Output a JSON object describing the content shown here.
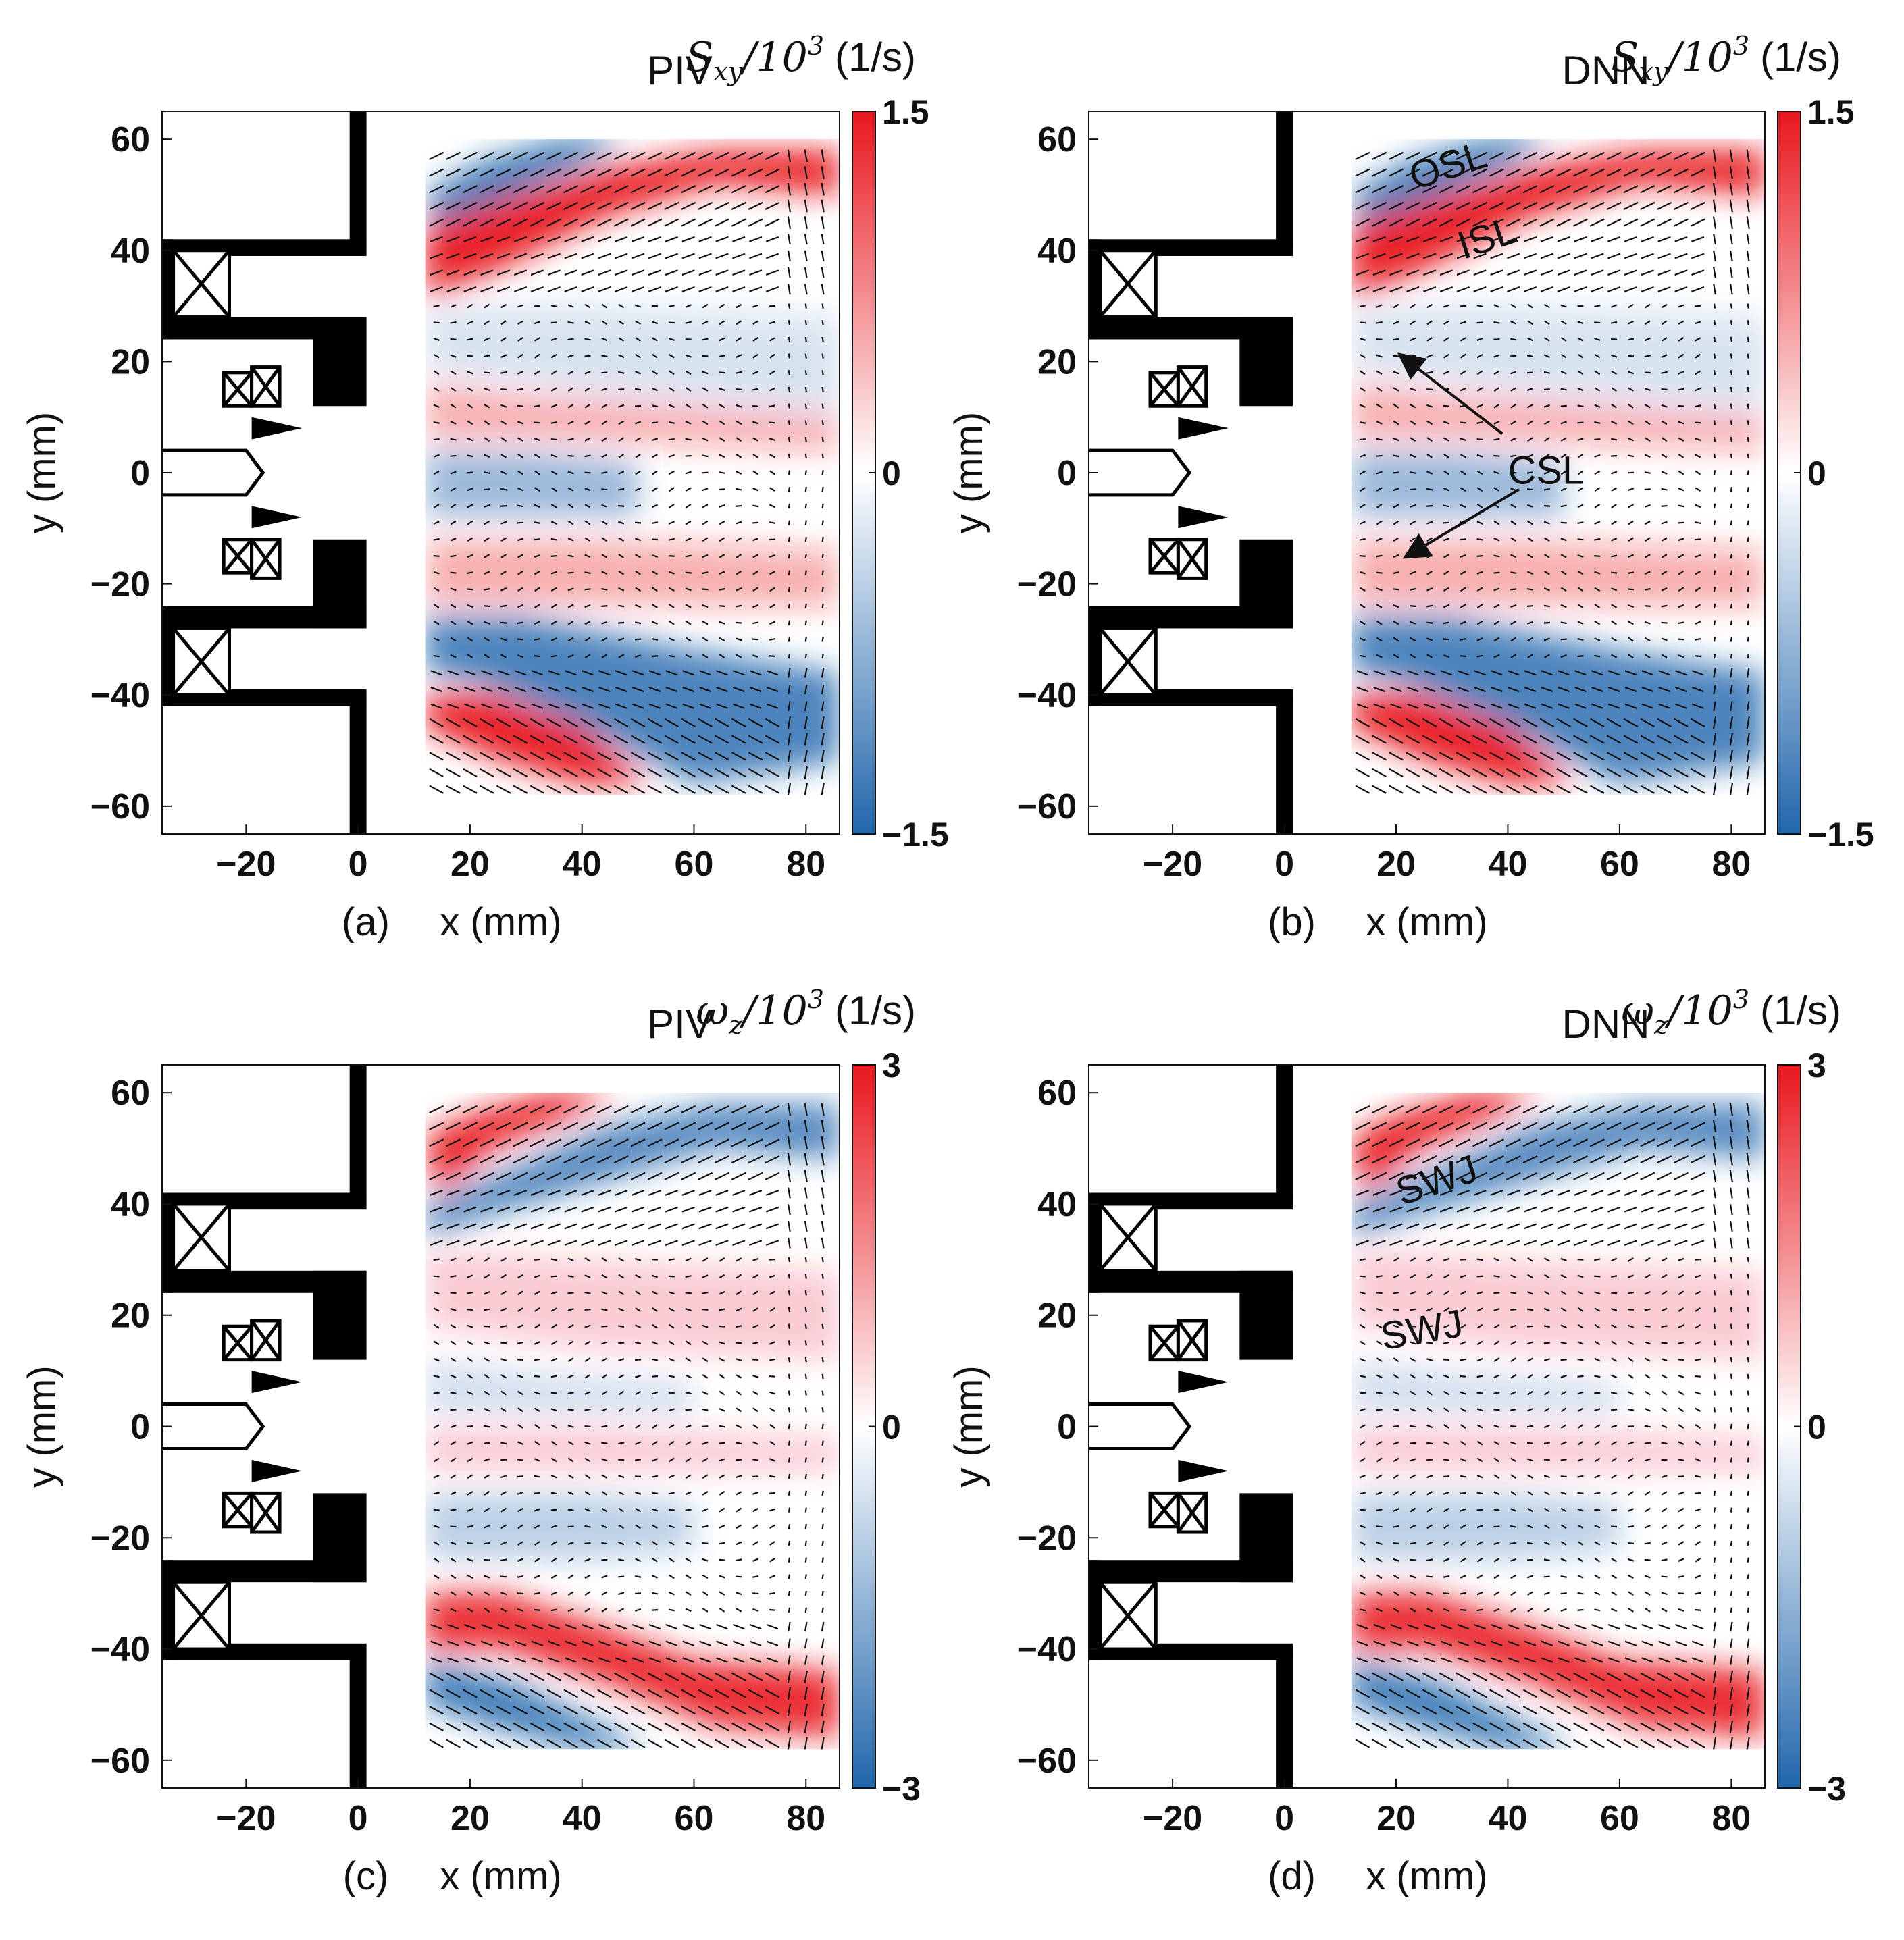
{
  "figure": {
    "panels": [
      "a",
      "b",
      "c",
      "d"
    ]
  },
  "chart_data": [
    {
      "panel_id": "a",
      "type": "heatmap",
      "title": "PIV",
      "panel_label": "(a)",
      "xlabel": "x (mm)",
      "ylabel": "y (mm)",
      "xlim": [
        -35,
        86
      ],
      "ylim": [
        -65,
        65
      ],
      "xticks": [
        -20,
        0,
        20,
        40,
        60,
        80
      ],
      "yticks": [
        60,
        40,
        20,
        0,
        -20,
        -40,
        -60
      ],
      "colorbar": {
        "quantity": "S",
        "subscript": "xy",
        "scale": "/10",
        "exponent": "3",
        "unit": "(1/s)",
        "max": "1.5",
        "zero": "0",
        "min": "−1.5"
      },
      "colormap": [
        "#2166ac",
        "#ffffff",
        "#e8171e"
      ],
      "field_region": {
        "x": [
          12,
          86
        ],
        "y": [
          -58,
          60
        ]
      },
      "annotations": []
    },
    {
      "panel_id": "b",
      "type": "heatmap",
      "title": "DNN",
      "panel_label": "(b)",
      "xlabel": "x (mm)",
      "ylabel": "y (mm)",
      "xlim": [
        -35,
        86
      ],
      "ylim": [
        -65,
        65
      ],
      "xticks": [
        -20,
        0,
        20,
        40,
        60,
        80
      ],
      "yticks": [
        60,
        40,
        20,
        0,
        -20,
        -40,
        -60
      ],
      "colorbar": {
        "quantity": "S",
        "subscript": "xy",
        "scale": "/10",
        "exponent": "3",
        "unit": "(1/s)",
        "max": "1.5",
        "zero": "0",
        "min": "−1.5"
      },
      "colormap": [
        "#2166ac",
        "#ffffff",
        "#e8171e"
      ],
      "field_region": {
        "x": [
          12,
          86
        ],
        "y": [
          -58,
          60
        ]
      },
      "annotations": [
        "OSL",
        "ISL",
        "CSL"
      ]
    },
    {
      "panel_id": "c",
      "type": "heatmap",
      "title": "PIV",
      "panel_label": "(c)",
      "xlabel": "x (mm)",
      "ylabel": "y (mm)",
      "xlim": [
        -35,
        86
      ],
      "ylim": [
        -65,
        65
      ],
      "xticks": [
        -20,
        0,
        20,
        40,
        60,
        80
      ],
      "yticks": [
        60,
        40,
        20,
        0,
        -20,
        -40,
        -60
      ],
      "colorbar": {
        "quantity": "ω",
        "subscript": "z",
        "scale": "/10",
        "exponent": "3",
        "unit": "(1/s)",
        "max": "3",
        "zero": "0",
        "min": "−3"
      },
      "colormap": [
        "#2166ac",
        "#ffffff",
        "#e8171e"
      ],
      "field_region": {
        "x": [
          12,
          86
        ],
        "y": [
          -58,
          60
        ]
      },
      "annotations": []
    },
    {
      "panel_id": "d",
      "type": "heatmap",
      "title": "DNN",
      "panel_label": "(d)",
      "xlabel": "x (mm)",
      "ylabel": "y (mm)",
      "xlim": [
        -35,
        86
      ],
      "ylim": [
        -65,
        65
      ],
      "xticks": [
        -20,
        0,
        20,
        40,
        60,
        80
      ],
      "yticks": [
        60,
        40,
        20,
        0,
        -20,
        -40,
        -60
      ],
      "colorbar": {
        "quantity": "ω",
        "subscript": "z",
        "scale": "/10",
        "exponent": "3",
        "unit": "(1/s)",
        "max": "3",
        "zero": "0",
        "min": "−3"
      },
      "colormap": [
        "#2166ac",
        "#ffffff",
        "#e8171e"
      ],
      "field_region": {
        "x": [
          12,
          86
        ],
        "y": [
          -58,
          60
        ]
      },
      "annotations": [
        "SWJ",
        "SWJ"
      ]
    }
  ]
}
